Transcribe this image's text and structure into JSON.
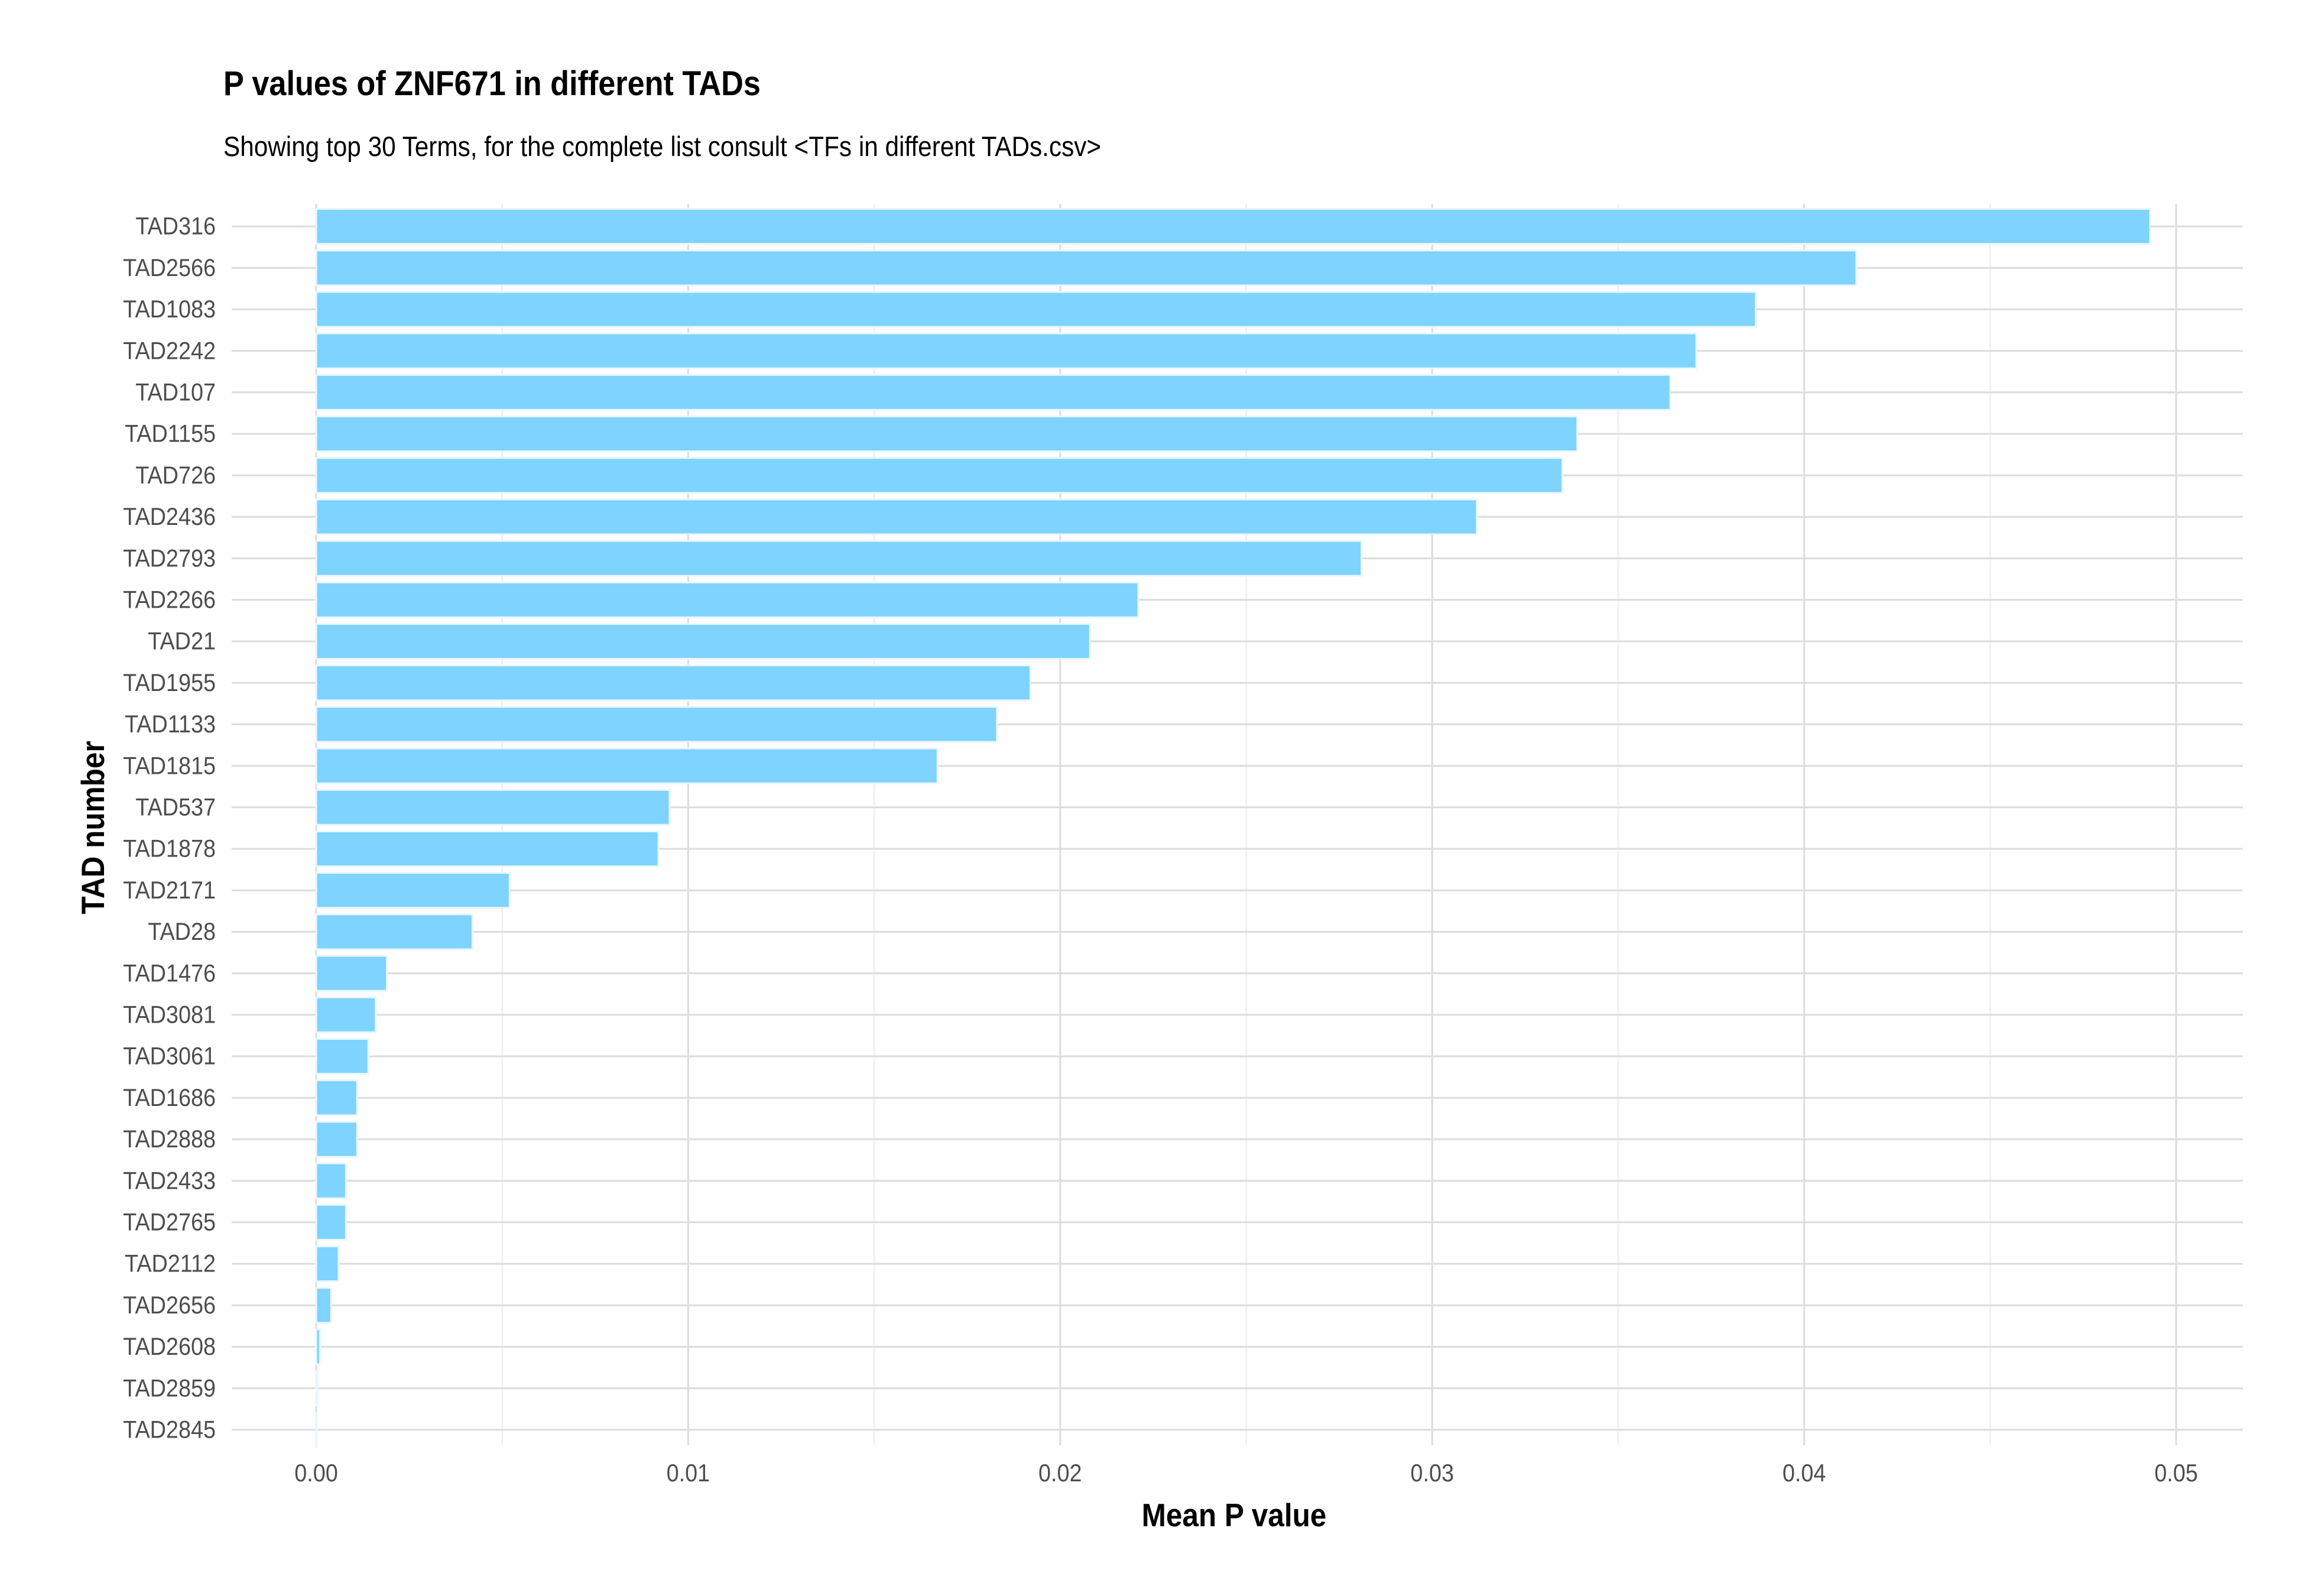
{
  "chart_data": {
    "type": "bar",
    "orientation": "horizontal",
    "title": "P values of ZNF671 in different TADs",
    "subtitle": "Showing top 30 Terms, for the complete list consult <TFs in different TADs.csv>",
    "xlabel": "Mean P value",
    "ylabel": "TAD number",
    "xlim": [
      -0.0023,
      0.0518
    ],
    "x_ticks": [
      "0.00",
      "0.01",
      "0.02",
      "0.03",
      "0.04",
      "0.05"
    ],
    "x_tick_values": [
      0,
      0.01,
      0.02,
      0.03,
      0.04,
      0.05
    ],
    "grid": true,
    "bar_color": "#7fd3ff",
    "bar_edge": "#e8f6ff",
    "categories": [
      "TAD316",
      "TAD2566",
      "TAD1083",
      "TAD2242",
      "TAD107",
      "TAD1155",
      "TAD726",
      "TAD2436",
      "TAD2793",
      "TAD2266",
      "TAD21",
      "TAD1955",
      "TAD1133",
      "TAD1815",
      "TAD537",
      "TAD1878",
      "TAD2171",
      "TAD28",
      "TAD1476",
      "TAD3081",
      "TAD3061",
      "TAD1686",
      "TAD2888",
      "TAD2433",
      "TAD2765",
      "TAD2112",
      "TAD2656",
      "TAD2608",
      "TAD2859",
      "TAD2845"
    ],
    "values": [
      0.0493,
      0.0414,
      0.0387,
      0.0371,
      0.0364,
      0.0339,
      0.0335,
      0.0312,
      0.0281,
      0.0221,
      0.0208,
      0.0192,
      0.0183,
      0.0167,
      0.0095,
      0.0092,
      0.0052,
      0.0042,
      0.0019,
      0.0016,
      0.0014,
      0.0011,
      0.0011,
      0.0008,
      0.0008,
      0.0006,
      0.0004,
      0.0001,
      3e-05,
      1e-05
    ]
  }
}
